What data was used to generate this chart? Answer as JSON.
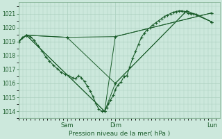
{
  "xlabel": "Pression niveau de la mer( hPa )",
  "bg_color": "#cce8dc",
  "plot_bg_color": "#cce8dc",
  "grid_color": "#aacfbe",
  "line_color": "#1a5c2a",
  "ylim": [
    1013.5,
    1021.8
  ],
  "yticks": [
    1014,
    1015,
    1016,
    1017,
    1018,
    1019,
    1020,
    1021
  ],
  "xlim": [
    0,
    1.04
  ],
  "day_positions": [
    0.25,
    0.5,
    1.0
  ],
  "day_labels": [
    "Sam",
    "Dim",
    "Lun"
  ],
  "series_main": [
    0.0,
    1019.0,
    0.02,
    1019.3,
    0.04,
    1019.45,
    0.06,
    1019.35,
    0.08,
    1019.1,
    0.1,
    1018.7,
    0.12,
    1018.35,
    0.14,
    1017.9,
    0.16,
    1017.6,
    0.18,
    1017.3,
    0.2,
    1017.05,
    0.22,
    1016.8,
    0.24,
    1016.65,
    0.26,
    1016.55,
    0.28,
    1016.4,
    0.295,
    1016.35,
    0.31,
    1016.55,
    0.325,
    1016.4,
    0.34,
    1016.15,
    0.355,
    1015.8,
    0.37,
    1015.45,
    0.385,
    1015.05,
    0.4,
    1014.55,
    0.415,
    1014.15,
    0.43,
    1014.02,
    0.445,
    1014.0,
    0.455,
    1014.25,
    0.465,
    1014.55,
    0.475,
    1014.8,
    0.49,
    1015.15,
    0.5,
    1015.55,
    0.515,
    1015.9,
    0.53,
    1016.1,
    0.545,
    1016.5,
    0.56,
    1016.55,
    0.575,
    1017.2,
    0.59,
    1017.8,
    0.605,
    1018.3,
    0.62,
    1018.8,
    0.635,
    1019.3,
    0.65,
    1019.6,
    0.665,
    1019.85,
    0.68,
    1020.0,
    0.695,
    1020.2,
    0.71,
    1020.35,
    0.725,
    1020.5,
    0.74,
    1020.65,
    0.755,
    1020.8,
    0.77,
    1020.9,
    0.785,
    1021.0,
    0.8,
    1021.1,
    0.815,
    1021.15,
    0.83,
    1021.2,
    0.845,
    1021.2,
    0.86,
    1021.15,
    0.875,
    1021.05,
    0.89,
    1021.0,
    0.905,
    1021.0,
    0.92,
    1020.95,
    1.0,
    1020.4
  ],
  "series_lines": [
    [
      0.0,
      1019.0,
      0.04,
      1019.45,
      0.25,
      1019.3,
      0.5,
      1019.35,
      1.0,
      1021.05
    ],
    [
      0.0,
      1019.0,
      0.04,
      1019.45,
      0.25,
      1019.3,
      0.5,
      1016.0,
      0.87,
      1021.2,
      1.0,
      1020.4
    ],
    [
      0.0,
      1019.0,
      0.04,
      1019.45,
      0.445,
      1014.0,
      0.5,
      1019.35,
      1.0,
      1021.05
    ],
    [
      0.0,
      1019.0,
      0.04,
      1019.45,
      0.445,
      1014.0,
      0.5,
      1016.0,
      0.87,
      1021.2,
      1.0,
      1020.4
    ]
  ]
}
